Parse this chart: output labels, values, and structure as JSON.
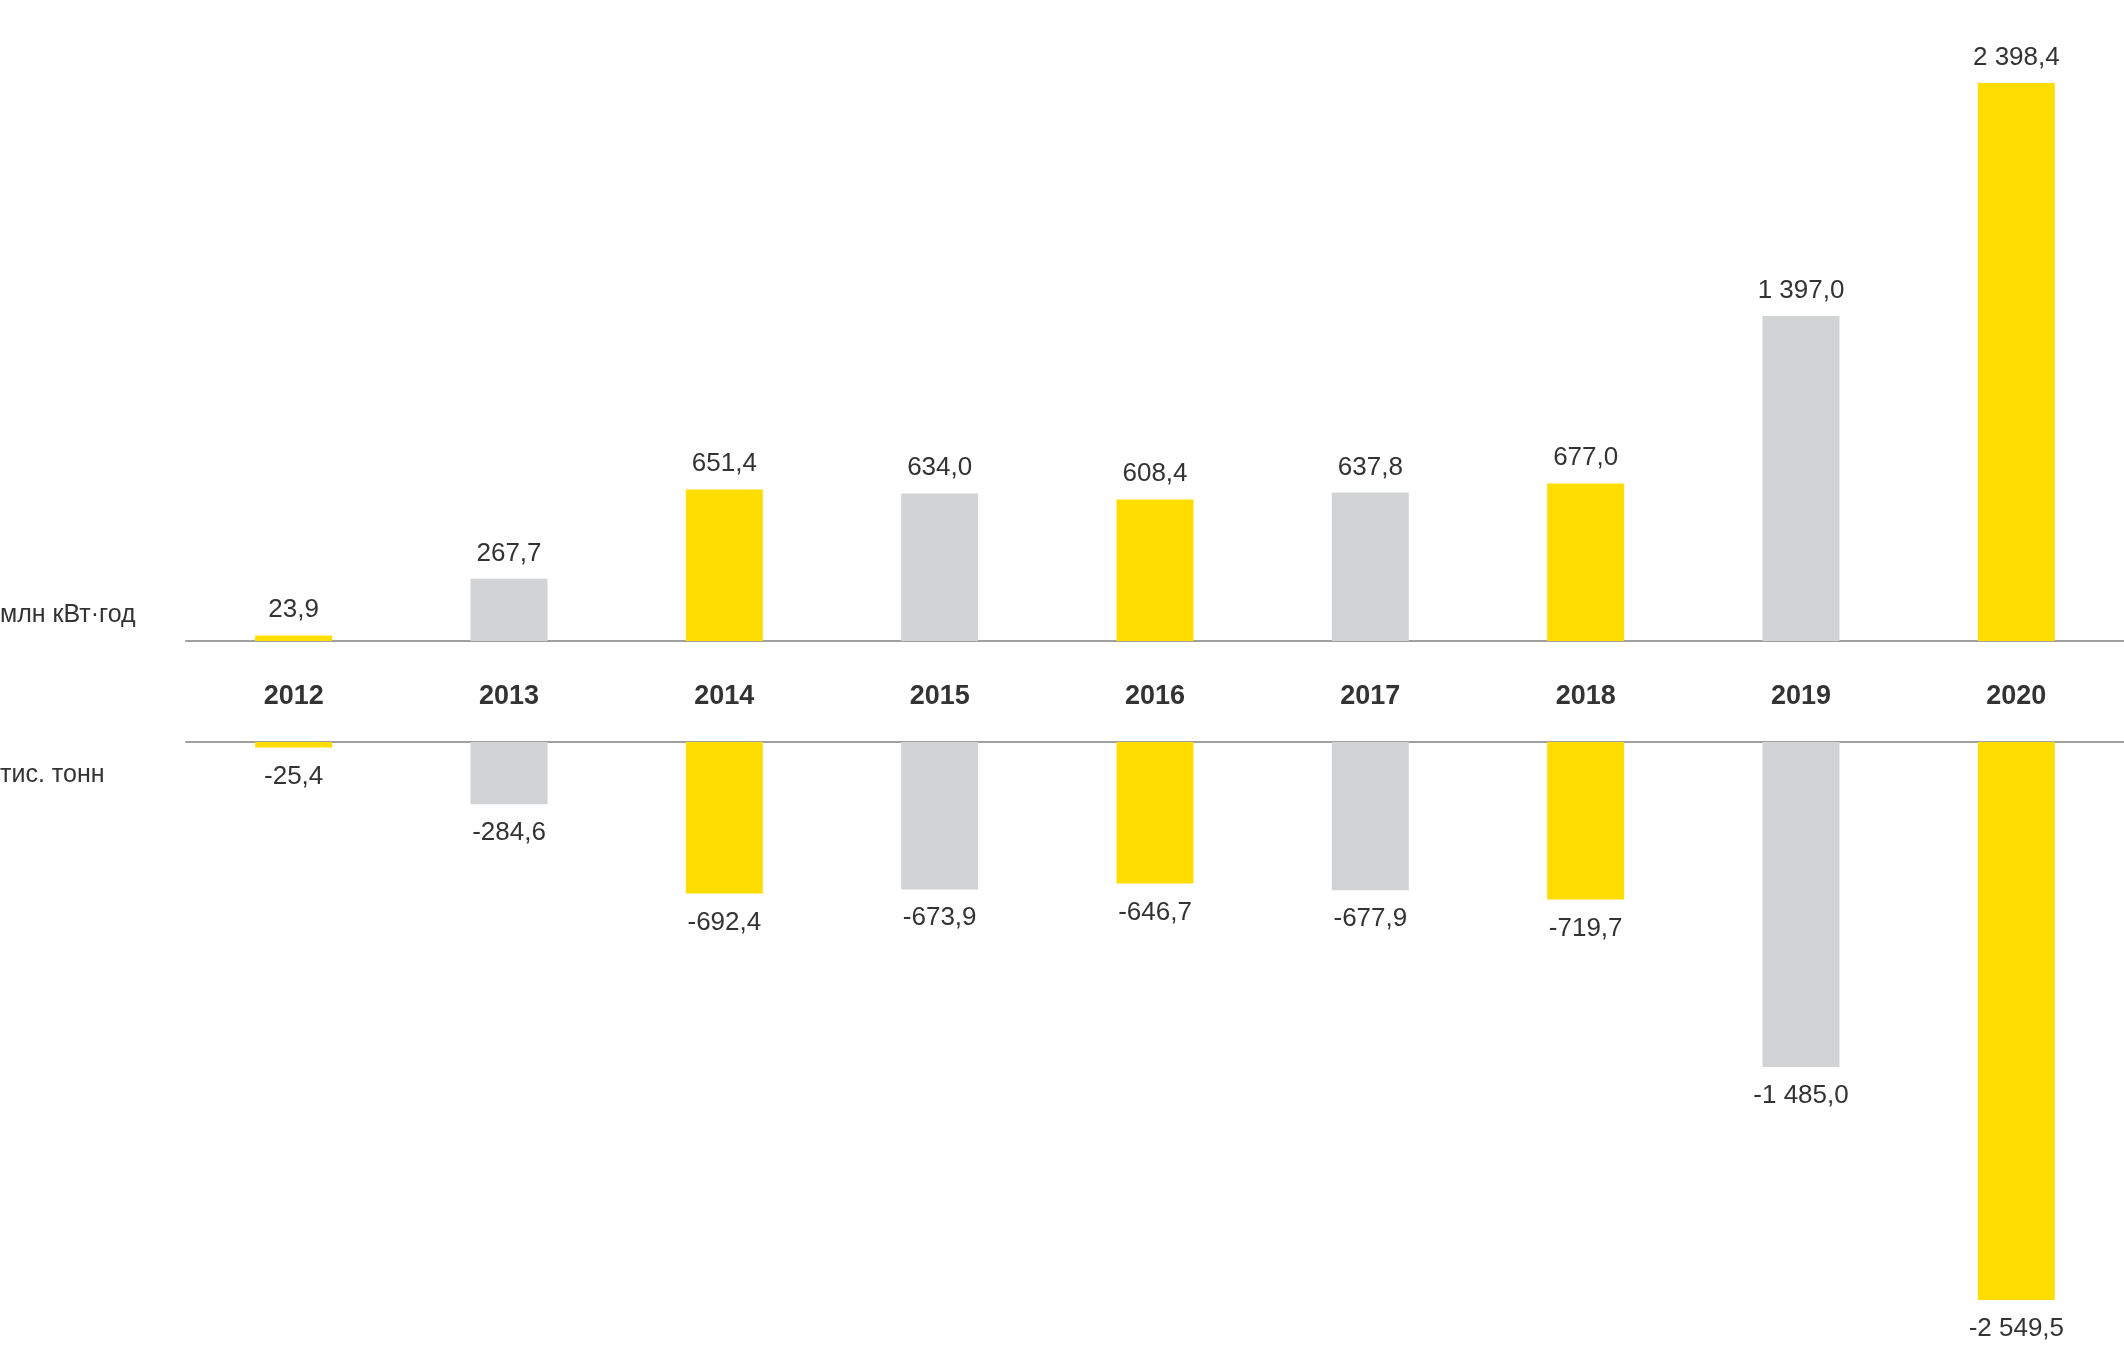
{
  "chart_data": [
    {
      "type": "bar",
      "ylabel": "млн кВт·год",
      "categories": [
        "2012",
        "2013",
        "2014",
        "2015",
        "2016",
        "2017",
        "2018",
        "2019",
        "2020"
      ],
      "values": [
        23.9,
        267.7,
        651.4,
        634.0,
        608.4,
        637.8,
        677.0,
        1397.0,
        2398.4
      ],
      "value_labels": [
        "23,9",
        "267,7",
        "651,4",
        "634,0",
        "608,4",
        "637,8",
        "677,0",
        "1 397,0",
        "2 398,4"
      ],
      "colors": [
        "#ffdd00",
        "#d1d3d4",
        "#ffdd00",
        "#d1d3d4",
        "#ffdd00",
        "#d1d3d4",
        "#ffdd00",
        "#d1d3d4",
        "#ffdd00"
      ],
      "tick_labels": "x"
    },
    {
      "type": "bar",
      "ylabel": "тис. тонн",
      "categories": [
        "2012",
        "2013",
        "2014",
        "2015",
        "2016",
        "2017",
        "2018",
        "2019",
        "2020"
      ],
      "values": [
        -25.4,
        -284.6,
        -692.4,
        -673.9,
        -646.7,
        -677.9,
        -719.7,
        -1485.0,
        -2549.5
      ],
      "value_labels": [
        "-25,4",
        "-284,6",
        "-692,4",
        "-673,9",
        "-646,7",
        "-677,9",
        "-719,7",
        "-1 485,0",
        "-2 549,5"
      ],
      "colors": [
        "#ffdd00",
        "#d1d3d4",
        "#ffdd00",
        "#d1d3d4",
        "#ffdd00",
        "#d1d3d4",
        "#ffdd00",
        "#d1d3d4",
        "#ffdd00"
      ],
      "tick_labels": false
    }
  ]
}
